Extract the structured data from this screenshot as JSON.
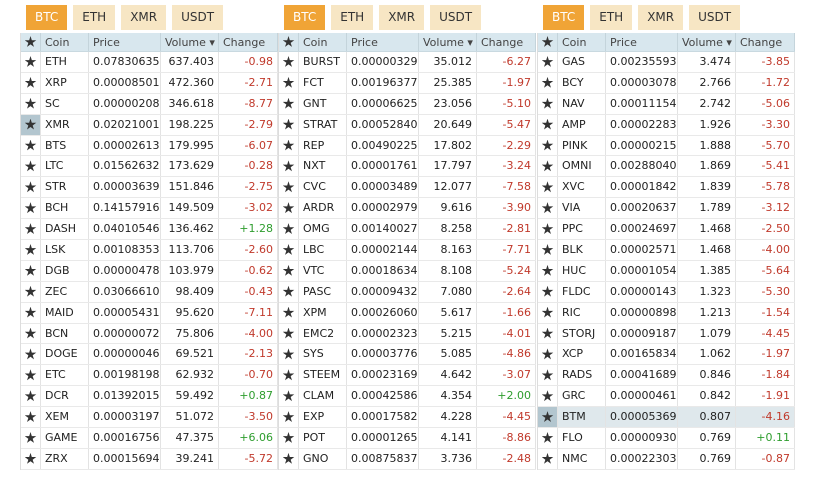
{
  "panels": [
    {
      "tabs": [
        "BTC",
        "ETH",
        "XMR",
        "USDT"
      ],
      "headers": [
        "Coin",
        "Price",
        "Volume ▾",
        "Change"
      ],
      "rows": [
        [
          "ETH",
          "0.07830635",
          "637.403",
          "-0.98"
        ],
        [
          "XRP",
          "0.00008501",
          "472.360",
          "-2.71"
        ],
        [
          "SC",
          "0.00000208",
          "346.618",
          "-8.77"
        ],
        [
          "XMR",
          "0.02021001",
          "198.225",
          "-2.79"
        ],
        [
          "BTS",
          "0.00002613",
          "179.995",
          "-6.07"
        ],
        [
          "LTC",
          "0.01562632",
          "173.629",
          "-0.28"
        ],
        [
          "STR",
          "0.00003639",
          "151.846",
          "-2.75"
        ],
        [
          "BCH",
          "0.14157916",
          "149.509",
          "-3.02"
        ],
        [
          "DASH",
          "0.04010546",
          "136.462",
          "+1.28"
        ],
        [
          "LSK",
          "0.00108353",
          "113.706",
          "-2.60"
        ],
        [
          "DGB",
          "0.00000478",
          "103.979",
          "-0.62"
        ],
        [
          "ZEC",
          "0.03066610",
          "98.409",
          "-0.43"
        ],
        [
          "MAID",
          "0.00005431",
          "95.620",
          "-7.11"
        ],
        [
          "BCN",
          "0.00000072",
          "75.806",
          "-4.00"
        ],
        [
          "DOGE",
          "0.00000046",
          "69.521",
          "-2.13"
        ],
        [
          "ETC",
          "0.00198198",
          "62.932",
          "-0.70"
        ],
        [
          "DCR",
          "0.01392015",
          "59.492",
          "+0.87"
        ],
        [
          "XEM",
          "0.00003197",
          "51.072",
          "-3.50"
        ],
        [
          "GAME",
          "0.00016756",
          "47.375",
          "+6.06"
        ],
        [
          "ZRX",
          "0.00015694",
          "39.241",
          "-5.72"
        ]
      ]
    },
    {
      "tabs": [
        "BTC",
        "ETH",
        "XMR",
        "USDT"
      ],
      "headers": [
        "Coin",
        "Price",
        "Volume ▾",
        "Change"
      ],
      "rows": [
        [
          "BURST",
          "0.00000329",
          "35.012",
          "-6.27"
        ],
        [
          "FCT",
          "0.00196377",
          "25.385",
          "-1.97"
        ],
        [
          "GNT",
          "0.00006625",
          "23.056",
          "-5.10"
        ],
        [
          "STRAT",
          "0.00052840",
          "20.649",
          "-5.47"
        ],
        [
          "REP",
          "0.00490225",
          "17.802",
          "-2.29"
        ],
        [
          "NXT",
          "0.00001761",
          "17.797",
          "-3.24"
        ],
        [
          "CVC",
          "0.00003489",
          "12.077",
          "-7.58"
        ],
        [
          "ARDR",
          "0.00002979",
          "9.616",
          "-3.90"
        ],
        [
          "OMG",
          "0.00140027",
          "8.258",
          "-2.81"
        ],
        [
          "LBC",
          "0.00002144",
          "8.163",
          "-7.71"
        ],
        [
          "VTC",
          "0.00018634",
          "8.108",
          "-5.24"
        ],
        [
          "PASC",
          "0.00009432",
          "7.080",
          "-2.64"
        ],
        [
          "XPM",
          "0.00026060",
          "5.617",
          "-1.66"
        ],
        [
          "EMC2",
          "0.00002323",
          "5.215",
          "-4.01"
        ],
        [
          "SYS",
          "0.00003776",
          "5.085",
          "-4.86"
        ],
        [
          "STEEM",
          "0.00023169",
          "4.642",
          "-3.07"
        ],
        [
          "CLAM",
          "0.00042586",
          "4.354",
          "+2.00"
        ],
        [
          "EXP",
          "0.00017582",
          "4.228",
          "-4.45"
        ],
        [
          "POT",
          "0.00001265",
          "4.141",
          "-8.86"
        ],
        [
          "GNO",
          "0.00875837",
          "3.736",
          "-2.48"
        ]
      ]
    },
    {
      "tabs": [
        "BTC",
        "ETH",
        "XMR",
        "USDT"
      ],
      "headers": [
        "Coin",
        "Price",
        "Volume ▾",
        "Change"
      ],
      "rows": [
        [
          "GAS",
          "0.00235593",
          "3.474",
          "-3.85"
        ],
        [
          "BCY",
          "0.00003078",
          "2.766",
          "-1.72"
        ],
        [
          "NAV",
          "0.00011154",
          "2.742",
          "-5.06"
        ],
        [
          "AMP",
          "0.00002283",
          "1.926",
          "-3.30"
        ],
        [
          "PINK",
          "0.00000215",
          "1.888",
          "-5.70"
        ],
        [
          "OMNI",
          "0.00288040",
          "1.869",
          "-5.41"
        ],
        [
          "XVC",
          "0.00001842",
          "1.839",
          "-5.78"
        ],
        [
          "VIA",
          "0.00020637",
          "1.789",
          "-3.12"
        ],
        [
          "PPC",
          "0.00024697",
          "1.468",
          "-2.50"
        ],
        [
          "BLK",
          "0.00002571",
          "1.468",
          "-4.00"
        ],
        [
          "HUC",
          "0.00001054",
          "1.385",
          "-5.64"
        ],
        [
          "FLDC",
          "0.00000143",
          "1.323",
          "-5.30"
        ],
        [
          "RIC",
          "0.00000898",
          "1.213",
          "-1.54"
        ],
        [
          "STORJ",
          "0.00009187",
          "1.079",
          "-4.45"
        ],
        [
          "XCP",
          "0.00165834",
          "1.062",
          "-1.97"
        ],
        [
          "RADS",
          "0.00041689",
          "0.846",
          "-1.84"
        ],
        [
          "GRC",
          "0.00000461",
          "0.842",
          "-1.91"
        ],
        [
          "BTM",
          "0.00005369",
          "0.807",
          "-4.16"
        ],
        [
          "FLO",
          "0.00000930",
          "0.769",
          "+0.11"
        ],
        [
          "NMC",
          "0.00022303",
          "0.769",
          "-0.87"
        ]
      ]
    }
  ]
}
